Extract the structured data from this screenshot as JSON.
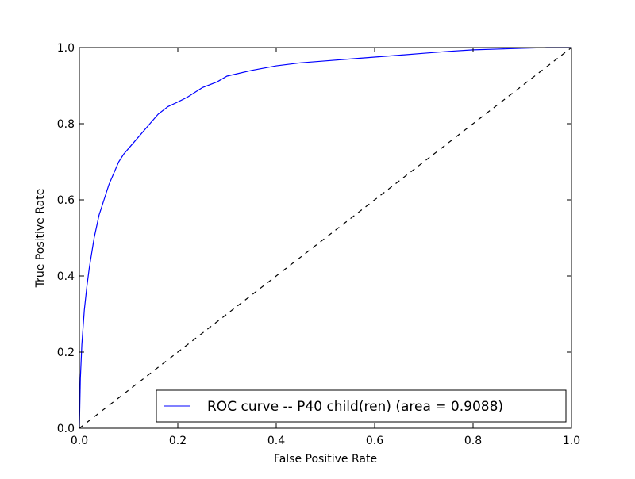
{
  "chart_data": {
    "type": "line",
    "title": "",
    "xlabel": "False Positive Rate",
    "ylabel": "True Positive Rate",
    "xlim": [
      0.0,
      1.0
    ],
    "ylim": [
      0.0,
      1.0
    ],
    "grid": false,
    "legend_position": "lower-right",
    "x_ticks": [
      "0.0",
      "0.2",
      "0.4",
      "0.6",
      "0.8",
      "1.0"
    ],
    "y_ticks": [
      "0.0",
      "0.2",
      "0.4",
      "0.6",
      "0.8",
      "1.0"
    ],
    "series": [
      {
        "name": "ROC curve -- P40 child(ren) (area = 0.9088)",
        "color": "#0000ff",
        "line_style": "solid",
        "x": [
          0.0,
          0.002,
          0.005,
          0.01,
          0.015,
          0.02,
          0.03,
          0.04,
          0.05,
          0.06,
          0.07,
          0.08,
          0.09,
          0.1,
          0.12,
          0.14,
          0.16,
          0.18,
          0.2,
          0.22,
          0.25,
          0.28,
          0.3,
          0.35,
          0.4,
          0.45,
          0.5,
          0.55,
          0.6,
          0.65,
          0.7,
          0.75,
          0.8,
          0.85,
          0.9,
          0.95,
          1.0
        ],
        "y": [
          0.0,
          0.13,
          0.22,
          0.31,
          0.37,
          0.42,
          0.5,
          0.56,
          0.6,
          0.64,
          0.67,
          0.7,
          0.72,
          0.735,
          0.765,
          0.795,
          0.825,
          0.845,
          0.857,
          0.87,
          0.895,
          0.91,
          0.925,
          0.94,
          0.952,
          0.96,
          0.965,
          0.97,
          0.975,
          0.98,
          0.985,
          0.99,
          0.994,
          0.996,
          0.998,
          1.0,
          1.0
        ]
      },
      {
        "name": "",
        "color": "#000000",
        "line_style": "dashed",
        "x": [
          0.0,
          1.0
        ],
        "y": [
          0.0,
          1.0
        ]
      }
    ]
  }
}
